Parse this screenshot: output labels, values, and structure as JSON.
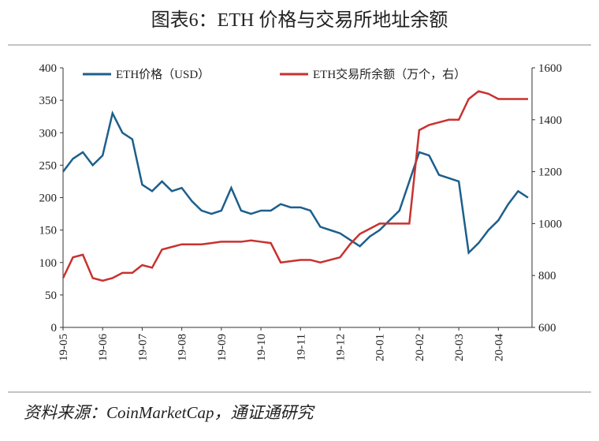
{
  "chart_data": {
    "type": "line",
    "title": "图表6：ETH 价格与交易所地址余额",
    "source": "资料来源：CoinMarketCap，通证通研究",
    "x": [
      0,
      0.25,
      0.5,
      0.75,
      1,
      1.25,
      1.5,
      1.75,
      2,
      2.25,
      2.5,
      2.75,
      3,
      3.25,
      3.5,
      3.75,
      4,
      4.25,
      4.5,
      4.75,
      5,
      5.25,
      5.5,
      5.75,
      6,
      6.25,
      6.5,
      6.75,
      7,
      7.25,
      7.5,
      7.75,
      8,
      8.25,
      8.5,
      8.75,
      9,
      9.25,
      9.5,
      9.75,
      10,
      10.25,
      10.5,
      10.75,
      11,
      11.25,
      11.5,
      11.75
    ],
    "xlim": [
      0,
      11.85
    ],
    "xticks": [
      {
        "value": 0,
        "label": "19-05"
      },
      {
        "value": 1,
        "label": "19-06"
      },
      {
        "value": 2,
        "label": "19-07"
      },
      {
        "value": 3,
        "label": "19-08"
      },
      {
        "value": 4,
        "label": "19-09"
      },
      {
        "value": 5,
        "label": "19-10"
      },
      {
        "value": 6,
        "label": "19-11"
      },
      {
        "value": 7,
        "label": "19-12"
      },
      {
        "value": 8,
        "label": "20-01"
      },
      {
        "value": 9,
        "label": "20-02"
      },
      {
        "value": 10,
        "label": "20-03"
      },
      {
        "value": 11,
        "label": "20-04"
      }
    ],
    "ylim": [
      0,
      400
    ],
    "yticks": [
      0,
      50,
      100,
      150,
      200,
      250,
      300,
      350,
      400
    ],
    "y2lim": [
      600,
      1600
    ],
    "y2ticks": [
      600,
      800,
      1000,
      1200,
      1400,
      1600
    ],
    "series": [
      {
        "name": "ETH价格（USD）",
        "color": "#1c5f8c",
        "values": [
          240,
          260,
          270,
          250,
          265,
          330,
          300,
          290,
          220,
          210,
          225,
          210,
          215,
          195,
          180,
          175,
          180,
          215,
          180,
          175,
          180,
          180,
          190,
          185,
          185,
          180,
          155,
          150,
          145,
          135,
          125,
          140,
          150,
          165,
          180,
          225,
          270,
          265,
          235,
          230,
          225,
          115,
          130,
          150,
          165,
          190,
          210,
          200
        ]
      },
      {
        "name": "ETH交易所余额（万个，右）",
        "color": "#c8322f",
        "axis": "y2",
        "values": [
          790,
          870,
          880,
          790,
          780,
          790,
          810,
          810,
          840,
          830,
          900,
          910,
          920,
          920,
          920,
          925,
          930,
          930,
          930,
          935,
          930,
          925,
          850,
          855,
          860,
          860,
          850,
          860,
          870,
          920,
          960,
          980,
          1000,
          1000,
          1000,
          1000,
          1360,
          1380,
          1390,
          1400,
          1400,
          1480,
          1510,
          1500,
          1480,
          1480,
          1480,
          1480
        ]
      }
    ]
  }
}
